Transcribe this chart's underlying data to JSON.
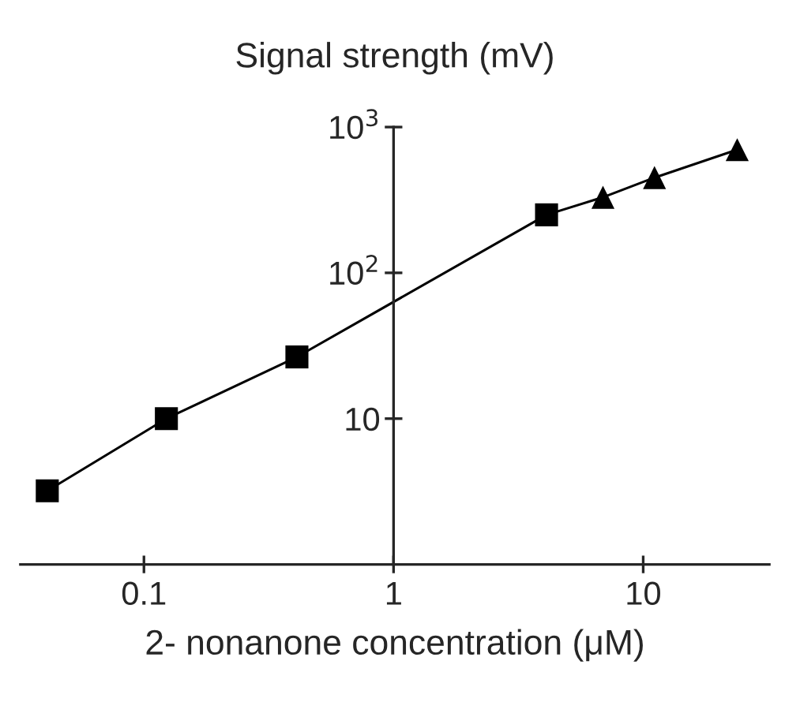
{
  "chart_data": {
    "type": "scatter",
    "ylabel": "Signal strength (mV)",
    "xlabel": "2- nonanone concentration (μM)",
    "log": "xy",
    "grid": false,
    "legend": false,
    "xlim": [
      0.032,
      32
    ],
    "xticks": [
      0.1,
      1,
      10
    ],
    "ylim": [
      1,
      1000
    ],
    "yticks": [
      10,
      {
        "value": 100,
        "label": "10$^{2}$"
      },
      {
        "value": 1000,
        "label": "10$^{3}$"
      }
    ],
    "series": [
      {
        "type": "line",
        "marker": "none",
        "line_style": "solid",
        "color": "#000000",
        "x": [
          0.041,
          0.123,
          0.41,
          4.1,
          6.9,
          11.1,
          23.8
        ],
        "values": [
          3.2,
          10,
          26.5,
          250,
          330,
          450,
          700
        ]
      },
      {
        "type": "scatter",
        "marker": "square",
        "color": "#000000",
        "x": [
          0.041,
          0.123,
          0.41,
          4.1
        ],
        "values": [
          3.2,
          10,
          26.5,
          250
        ]
      },
      {
        "type": "scatter",
        "marker": "triangle",
        "color": "#000000",
        "x": [
          6.9,
          11.1,
          23.8
        ],
        "values": [
          330,
          450,
          700
        ]
      }
    ]
  }
}
